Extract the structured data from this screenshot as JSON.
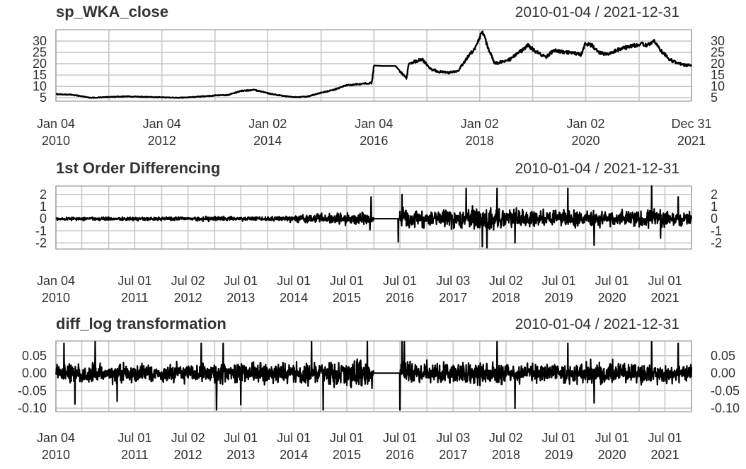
{
  "chart_data": [
    {
      "type": "line",
      "title": "sp_WKA_close",
      "date_range": "2010-01-04 / 2021-12-31",
      "date_range_dates": [
        "2010-01-04",
        "2021-12-31"
      ],
      "ylim": [
        3.5,
        35
      ],
      "yticks": [
        5,
        10,
        15,
        20,
        25,
        30
      ],
      "grid": true,
      "xticks": [
        {
          "date": "2010-01-04",
          "line1": "Jan 04",
          "line2": "2010"
        },
        {
          "date": "2012-01-04",
          "line1": "Jan 04",
          "line2": "2012"
        },
        {
          "date": "2014-01-02",
          "line1": "Jan 02",
          "line2": "2014"
        },
        {
          "date": "2016-01-04",
          "line1": "Jan 04",
          "line2": "2016"
        },
        {
          "date": "2018-01-02",
          "line1": "Jan 02",
          "line2": "2018"
        },
        {
          "date": "2020-01-02",
          "line1": "Jan 02",
          "line2": "2020"
        },
        {
          "date": "2021-12-31",
          "line1": "Dec 31",
          "line2": "2021"
        }
      ],
      "minor_ticks": [
        "2011-01-04",
        "2013-01-04",
        "2015-01-05",
        "2017-01-03",
        "2019-01-02",
        "2021-01-04"
      ],
      "x": [
        "2010-01-04",
        "2010-05-01",
        "2010-09-01",
        "2011-01-01",
        "2011-05-01",
        "2011-09-01",
        "2012-01-04",
        "2012-05-01",
        "2012-09-01",
        "2013-01-01",
        "2013-04-01",
        "2013-07-01",
        "2013-10-01",
        "2014-01-02",
        "2014-04-01",
        "2014-07-01",
        "2014-10-01",
        "2015-01-05",
        "2015-04-01",
        "2015-07-01",
        "2015-10-01",
        "2015-12-20",
        "2016-01-04",
        "2016-03-01",
        "2016-06-01",
        "2016-08-15",
        "2016-09-01",
        "2016-10-15",
        "2016-12-01",
        "2017-02-01",
        "2017-04-01",
        "2017-06-01",
        "2017-08-01",
        "2017-10-01",
        "2017-12-01",
        "2018-01-20",
        "2018-03-01",
        "2018-04-15",
        "2018-06-01",
        "2018-08-01",
        "2018-10-01",
        "2018-12-01",
        "2019-02-01",
        "2019-04-01",
        "2019-06-01",
        "2019-08-01",
        "2019-10-01",
        "2019-12-01",
        "2020-01-02",
        "2020-02-15",
        "2020-04-01",
        "2020-06-01",
        "2020-08-01",
        "2020-10-01",
        "2020-12-01",
        "2021-01-15",
        "2021-03-01",
        "2021-04-15",
        "2021-06-01",
        "2021-08-01",
        "2021-10-01",
        "2021-12-31"
      ],
      "values": [
        6.6,
        6.3,
        5.0,
        5.3,
        5.6,
        5.4,
        5.2,
        5.0,
        5.4,
        6.0,
        6.2,
        8.0,
        8.5,
        7.0,
        6.0,
        5.2,
        5.5,
        7.2,
        8.5,
        10.5,
        11.0,
        11.5,
        19.2,
        19.0,
        19.0,
        13.5,
        20.0,
        21.0,
        22.0,
        17.5,
        16.5,
        16.0,
        16.5,
        22.0,
        27.0,
        34.0,
        27.0,
        20.0,
        21.0,
        22.0,
        25.0,
        28.0,
        25.0,
        23.0,
        26.0,
        25.0,
        25.0,
        24.0,
        29.0,
        28.0,
        25.0,
        24.0,
        26.0,
        27.0,
        28.0,
        29.0,
        28.0,
        30.0,
        26.0,
        22.0,
        20.0,
        19.0
      ]
    },
    {
      "type": "line",
      "title": "1st Order Differencing",
      "date_range": "2010-01-04 / 2021-12-31",
      "date_range_dates": [
        "2010-01-04",
        "2021-12-31"
      ],
      "ylim": [
        -2.5,
        2.7
      ],
      "yticks": [
        -2,
        -1,
        0,
        1,
        2
      ],
      "grid": true,
      "xticks": [
        {
          "date": "2010-01-04",
          "line1": "Jan 04",
          "line2": "2010"
        },
        {
          "date": "2011-07-01",
          "line1": "Jul 01",
          "line2": "2011"
        },
        {
          "date": "2012-07-02",
          "line1": "Jul 02",
          "line2": "2012"
        },
        {
          "date": "2013-07-01",
          "line1": "Jul 01",
          "line2": "2013"
        },
        {
          "date": "2014-07-01",
          "line1": "Jul 01",
          "line2": "2014"
        },
        {
          "date": "2015-07-01",
          "line1": "Jul 01",
          "line2": "2015"
        },
        {
          "date": "2016-07-01",
          "line1": "Jul 01",
          "line2": "2016"
        },
        {
          "date": "2017-07-03",
          "line1": "Jul 03",
          "line2": "2017"
        },
        {
          "date": "2018-07-02",
          "line1": "Jul 02",
          "line2": "2018"
        },
        {
          "date": "2019-07-01",
          "line1": "Jul 01",
          "line2": "2019"
        },
        {
          "date": "2020-07-01",
          "line1": "Jul 01",
          "line2": "2020"
        },
        {
          "date": "2021-07-01",
          "line1": "Jul 01",
          "line2": "2021"
        }
      ],
      "minor_ticks": [
        "2010-07-01",
        "2011-01-03",
        "2012-01-03",
        "2013-01-02",
        "2014-01-02",
        "2015-01-02",
        "2016-01-04",
        "2017-01-03",
        "2018-01-02",
        "2019-01-02",
        "2020-01-02",
        "2021-01-04",
        "2021-12-31"
      ],
      "envelope": {
        "x": [
          "2010-01-04",
          "2011-01-01",
          "2012-01-01",
          "2013-01-01",
          "2014-01-01",
          "2014-11-01",
          "2015-06-01",
          "2015-12-20",
          "2016-01-04",
          "2016-06-15",
          "2016-07-01",
          "2017-01-01",
          "2018-01-01",
          "2019-01-01",
          "2020-01-01",
          "2021-01-01",
          "2021-12-31"
        ],
        "amplitude": [
          0.15,
          0.2,
          0.2,
          0.25,
          0.2,
          0.5,
          0.6,
          1.0,
          0,
          0,
          1.3,
          1.0,
          1.2,
          1.0,
          1.0,
          1.0,
          0.9
        ]
      },
      "flat_segment": [
        "2016-01-04",
        "2016-07-01"
      ],
      "spikes": [
        {
          "x": "2015-12-15",
          "y": 1.8
        },
        {
          "x": "2016-06-20",
          "y": -1.9
        },
        {
          "x": "2016-07-15",
          "y": 2.0
        },
        {
          "x": "2017-10-01",
          "y": 2.5
        },
        {
          "x": "2018-01-20",
          "y": -2.3
        },
        {
          "x": "2018-02-20",
          "y": -2.4
        },
        {
          "x": "2018-05-01",
          "y": 2.5
        },
        {
          "x": "2018-09-01",
          "y": -2.0
        },
        {
          "x": "2019-09-01",
          "y": 2.5
        },
        {
          "x": "2020-03-01",
          "y": -2.2
        },
        {
          "x": "2021-04-01",
          "y": 2.7
        },
        {
          "x": "2021-06-01",
          "y": -1.6
        },
        {
          "x": "2021-10-01",
          "y": 1.8
        }
      ]
    },
    {
      "type": "line",
      "title": "diff_log transformation",
      "date_range": "2010-01-04 / 2021-12-31",
      "date_range_dates": [
        "2010-01-04",
        "2021-12-31"
      ],
      "ylim": [
        -0.11,
        0.092
      ],
      "yticks": [
        -0.1,
        -0.05,
        0.0,
        0.05
      ],
      "ytick_labels": [
        "-0.10",
        "-0.05",
        "0.00",
        "0.05"
      ],
      "grid": true,
      "xticks": [
        {
          "date": "2010-01-04",
          "line1": "Jan 04",
          "line2": "2010"
        },
        {
          "date": "2011-07-01",
          "line1": "Jul 01",
          "line2": "2011"
        },
        {
          "date": "2012-07-02",
          "line1": "Jul 02",
          "line2": "2012"
        },
        {
          "date": "2013-07-01",
          "line1": "Jul 01",
          "line2": "2013"
        },
        {
          "date": "2014-07-01",
          "line1": "Jul 01",
          "line2": "2014"
        },
        {
          "date": "2015-07-01",
          "line1": "Jul 01",
          "line2": "2015"
        },
        {
          "date": "2016-07-01",
          "line1": "Jul 01",
          "line2": "2016"
        },
        {
          "date": "2017-07-03",
          "line1": "Jul 03",
          "line2": "2017"
        },
        {
          "date": "2018-07-02",
          "line1": "Jul 02",
          "line2": "2018"
        },
        {
          "date": "2019-07-01",
          "line1": "Jul 01",
          "line2": "2019"
        },
        {
          "date": "2020-07-01",
          "line1": "Jul 01",
          "line2": "2020"
        },
        {
          "date": "2021-07-01",
          "line1": "Jul 01",
          "line2": "2021"
        }
      ],
      "minor_ticks": [
        "2010-07-01",
        "2011-01-03",
        "2012-01-03",
        "2013-01-02",
        "2014-01-02",
        "2015-01-02",
        "2016-01-04",
        "2017-01-03",
        "2018-01-02",
        "2019-01-02",
        "2020-01-02",
        "2021-01-04",
        "2021-12-31"
      ],
      "envelope": {
        "x": [
          "2010-01-04",
          "2011-01-01",
          "2012-01-01",
          "2013-01-01",
          "2014-01-01",
          "2015-01-01",
          "2015-12-20",
          "2016-01-04",
          "2016-06-15",
          "2016-07-01",
          "2017-01-01",
          "2018-01-01",
          "2019-01-01",
          "2020-01-01",
          "2021-01-01",
          "2021-12-31"
        ],
        "amplitude": [
          0.035,
          0.035,
          0.035,
          0.04,
          0.04,
          0.045,
          0.06,
          0,
          0,
          0.05,
          0.04,
          0.04,
          0.035,
          0.04,
          0.04,
          0.035
        ]
      },
      "flat_segment": [
        "2016-01-04",
        "2016-07-01"
      ],
      "spikes": [
        {
          "x": "2010-03-01",
          "y": 0.085
        },
        {
          "x": "2010-05-15",
          "y": -0.088
        },
        {
          "x": "2010-10-01",
          "y": 0.09
        },
        {
          "x": "2011-03-01",
          "y": -0.08
        },
        {
          "x": "2012-10-01",
          "y": 0.085
        },
        {
          "x": "2013-01-15",
          "y": -0.105
        },
        {
          "x": "2013-03-01",
          "y": 0.085
        },
        {
          "x": "2013-07-01",
          "y": -0.09
        },
        {
          "x": "2014-11-01",
          "y": 0.09
        },
        {
          "x": "2015-01-20",
          "y": -0.105
        },
        {
          "x": "2015-11-20",
          "y": 0.09
        },
        {
          "x": "2016-07-01",
          "y": -0.105
        },
        {
          "x": "2016-07-15",
          "y": 0.09
        },
        {
          "x": "2016-08-01",
          "y": 0.09
        },
        {
          "x": "2018-05-01",
          "y": 0.09
        },
        {
          "x": "2018-09-01",
          "y": -0.1
        },
        {
          "x": "2019-09-01",
          "y": 0.085
        },
        {
          "x": "2020-03-01",
          "y": -0.085
        },
        {
          "x": "2021-04-01",
          "y": 0.09
        },
        {
          "x": "2021-10-01",
          "y": 0.085
        }
      ]
    }
  ]
}
